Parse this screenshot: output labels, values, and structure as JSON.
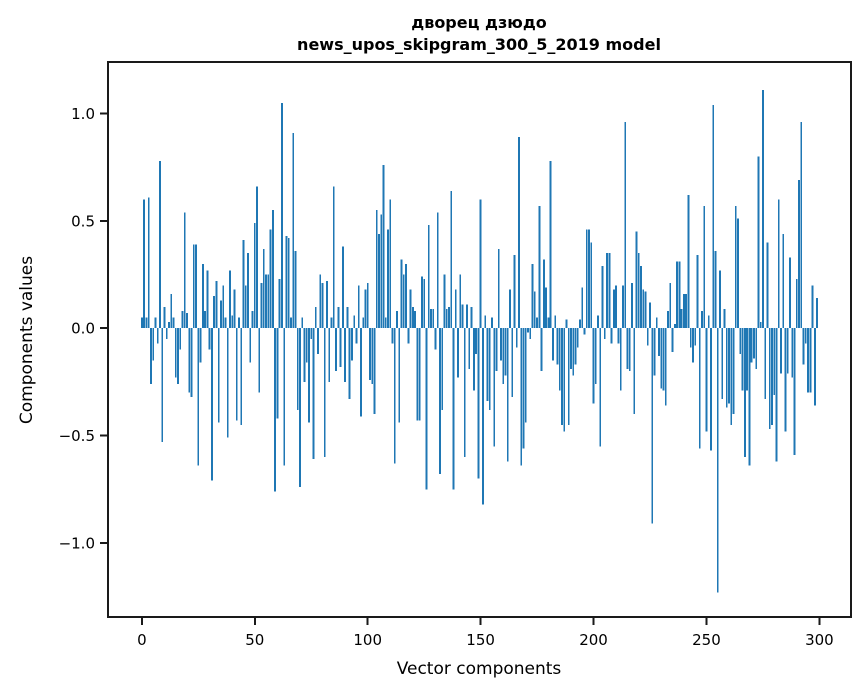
{
  "chart_data": {
    "type": "bar",
    "title_line1": "дворец дзюдо",
    "title_line2": "news_upos_skipgram_300_5_2019 model",
    "xlabel": "Vector components",
    "ylabel": "Components values",
    "x_ticks": [
      0,
      50,
      100,
      150,
      200,
      250,
      300
    ],
    "y_ticks": [
      -1.0,
      -0.5,
      0.0,
      0.5,
      1.0
    ],
    "xlim": [
      -15,
      314
    ],
    "ylim": [
      -1.345,
      1.24
    ],
    "grid": false,
    "legend": "none",
    "bar_color": "#1f77b4",
    "spine_color": "#1a1a1a",
    "n_components": 300,
    "values": [
      0.05,
      0.6,
      0.05,
      0.61,
      -0.26,
      -0.15,
      0.05,
      -0.07,
      0.78,
      -0.53,
      0.1,
      -0.05,
      0.03,
      0.16,
      0.05,
      -0.23,
      -0.26,
      -0.1,
      0.08,
      0.54,
      0.07,
      -0.3,
      -0.32,
      0.39,
      0.39,
      -0.64,
      -0.16,
      0.3,
      0.08,
      0.27,
      -0.1,
      -0.71,
      0.15,
      0.22,
      -0.44,
      0.13,
      0.2,
      0.05,
      -0.51,
      0.27,
      0.06,
      0.18,
      -0.43,
      0.05,
      -0.45,
      0.41,
      0.2,
      0.35,
      -0.16,
      0.08,
      0.49,
      0.66,
      -0.3,
      0.21,
      0.37,
      0.25,
      0.25,
      0.46,
      0.55,
      -0.76,
      -0.42,
      0.23,
      1.05,
      -0.64,
      0.43,
      0.42,
      0.05,
      0.91,
      0.36,
      -0.38,
      -0.74,
      0.05,
      -0.25,
      -0.16,
      -0.44,
      -0.05,
      -0.61,
      0.1,
      -0.12,
      0.25,
      0.21,
      -0.6,
      0.22,
      -0.25,
      0.05,
      0.66,
      -0.2,
      0.1,
      -0.18,
      0.38,
      -0.25,
      0.1,
      -0.33,
      -0.15,
      0.06,
      -0.07,
      0.2,
      -0.41,
      0.05,
      0.18,
      0.21,
      -0.24,
      -0.26,
      -0.4,
      0.55,
      0.44,
      0.53,
      0.76,
      0.05,
      0.46,
      0.6,
      -0.07,
      -0.63,
      0.08,
      -0.44,
      0.32,
      0.25,
      0.3,
      -0.07,
      0.18,
      0.1,
      0.08,
      -0.43,
      -0.43,
      0.24,
      0.23,
      -0.75,
      0.48,
      0.09,
      0.09,
      -0.1,
      0.54,
      -0.68,
      -0.38,
      0.25,
      0.09,
      0.1,
      0.64,
      -0.75,
      0.18,
      -0.23,
      0.25,
      0.11,
      -0.6,
      0.11,
      -0.19,
      0.1,
      -0.29,
      -0.12,
      -0.7,
      0.6,
      -0.82,
      0.06,
      -0.34,
      -0.38,
      0.05,
      -0.55,
      -0.2,
      0.37,
      -0.15,
      -0.26,
      -0.22,
      -0.62,
      0.18,
      -0.32,
      0.34,
      -0.09,
      0.89,
      -0.64,
      -0.56,
      -0.44,
      -0.02,
      -0.05,
      0.3,
      0.17,
      0.05,
      0.57,
      -0.2,
      0.32,
      0.19,
      0.05,
      0.78,
      -0.15,
      0.06,
      -0.17,
      -0.29,
      -0.45,
      -0.48,
      0.04,
      -0.45,
      -0.19,
      -0.22,
      -0.17,
      -0.09,
      0.04,
      0.19,
      -0.03,
      0.46,
      0.46,
      0.4,
      -0.35,
      -0.26,
      0.06,
      -0.55,
      0.29,
      -0.05,
      0.35,
      0.35,
      -0.07,
      0.18,
      0.2,
      -0.07,
      -0.29,
      0.2,
      0.96,
      -0.19,
      -0.2,
      0.21,
      -0.4,
      0.45,
      0.35,
      0.29,
      0.18,
      0.17,
      -0.08,
      0.12,
      -0.91,
      -0.22,
      0.05,
      -0.13,
      -0.28,
      -0.29,
      -0.36,
      0.08,
      0.21,
      -0.11,
      0.02,
      0.31,
      0.31,
      0.09,
      0.16,
      0.16,
      0.62,
      -0.09,
      -0.16,
      -0.08,
      0.34,
      -0.56,
      0.08,
      0.57,
      -0.48,
      0.06,
      -0.57,
      1.04,
      0.36,
      -1.23,
      0.27,
      -0.33,
      0.09,
      -0.37,
      -0.35,
      -0.45,
      -0.4,
      0.57,
      0.51,
      -0.12,
      -0.29,
      -0.6,
      -0.29,
      -0.64,
      -0.16,
      -0.14,
      -0.19,
      0.8,
      0.03,
      1.11,
      -0.33,
      0.4,
      -0.47,
      -0.45,
      -0.31,
      -0.62,
      0.6,
      -0.21,
      0.44,
      -0.48,
      -0.21,
      0.33,
      -0.23,
      -0.59,
      0.23,
      0.69,
      0.96,
      -0.17,
      -0.07,
      -0.3,
      -0.3,
      0.2,
      -0.36,
      0.14
    ]
  }
}
